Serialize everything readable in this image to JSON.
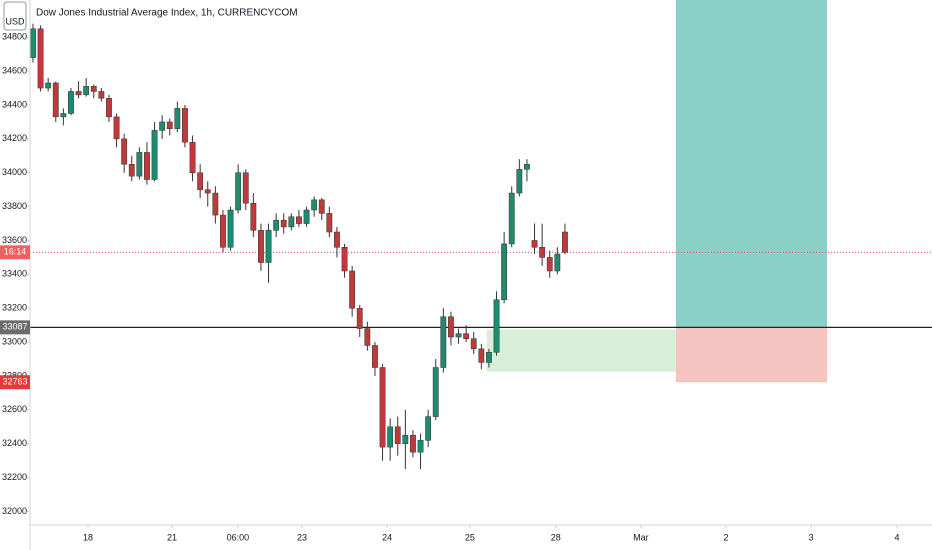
{
  "chart_data": {
    "type": "candlestick",
    "title": "Dow Jones Industrial Average Index, 1h, CURRENCYCOM",
    "currency": "USD",
    "up_color": "#1e8a6e",
    "down_color": "#c0393b",
    "x": [
      0,
      1,
      2,
      3,
      4,
      5,
      6,
      7,
      8,
      9,
      10,
      11,
      12,
      13,
      14,
      15,
      16,
      17,
      18,
      19,
      20,
      21,
      22,
      23,
      24,
      25,
      26,
      27,
      28,
      29,
      30,
      31,
      32,
      33,
      34,
      35,
      36,
      37,
      38,
      39,
      40,
      41,
      42,
      43,
      44,
      45,
      46,
      47,
      48,
      49,
      50,
      51,
      52,
      53,
      54,
      55,
      56,
      57,
      58,
      59,
      60,
      61,
      62,
      63,
      64,
      65,
      66,
      67,
      68,
      69,
      70
    ],
    "open": [
      34680,
      34850,
      34500,
      34530,
      34330,
      34350,
      34480,
      34460,
      34510,
      34480,
      34440,
      34330,
      34200,
      34050,
      33980,
      34120,
      33960,
      34250,
      34300,
      34260,
      34380,
      34180,
      34000,
      33900,
      33880,
      33750,
      33560,
      33780,
      34000,
      33820,
      33660,
      33470,
      33660,
      33720,
      33680,
      33740,
      33700,
      33780,
      33840,
      33760,
      33650,
      33560,
      33420,
      33200,
      33080,
      32980,
      32850,
      32380,
      32500,
      32400,
      32450,
      32350,
      32420,
      32560,
      32850,
      33150,
      33030,
      33050,
      33020,
      32960,
      32880,
      32940,
      33250,
      33580,
      33880,
      34020,
      33600,
      33560,
      33500,
      33420,
      33650
    ],
    "high": [
      34880,
      34870,
      34560,
      34540,
      34380,
      34500,
      34540,
      34560,
      34520,
      34500,
      34460,
      34350,
      34230,
      34100,
      34150,
      34180,
      34300,
      34340,
      34320,
      34420,
      34400,
      34220,
      34050,
      33950,
      33920,
      33780,
      33800,
      34050,
      34020,
      33880,
      33700,
      33700,
      33760,
      33760,
      33760,
      33780,
      33800,
      33860,
      33850,
      33800,
      33680,
      33580,
      33450,
      33220,
      33120,
      33000,
      32870,
      32550,
      32560,
      32600,
      32480,
      32460,
      32600,
      32900,
      33200,
      33180,
      33080,
      33100,
      33060,
      32990,
      32960,
      33300,
      33650,
      33920,
      34080,
      34080,
      33700,
      33700,
      33540,
      33560,
      33700
    ],
    "low": [
      34650,
      34480,
      34480,
      34300,
      34280,
      34340,
      34440,
      34450,
      34440,
      34420,
      34300,
      34150,
      34000,
      33950,
      33960,
      33930,
      33950,
      34200,
      34220,
      34240,
      34150,
      33950,
      33850,
      33800,
      33700,
      33530,
      33540,
      33760,
      33780,
      33620,
      33420,
      33350,
      33620,
      33640,
      33660,
      33680,
      33680,
      33740,
      33720,
      33620,
      33500,
      33380,
      33150,
      33030,
      32950,
      32800,
      32300,
      32300,
      32330,
      32250,
      32320,
      32250,
      32380,
      32540,
      32820,
      32980,
      32990,
      33000,
      32930,
      32840,
      32850,
      32920,
      33230,
      33560,
      33860,
      33950,
      33520,
      33450,
      33380,
      33400,
      33520
    ],
    "close": [
      34850,
      34500,
      34530,
      34330,
      34350,
      34480,
      34460,
      34510,
      34480,
      34440,
      34330,
      34200,
      34050,
      33980,
      34120,
      33960,
      34250,
      34300,
      34260,
      34380,
      34180,
      34000,
      33900,
      33880,
      33750,
      33560,
      33780,
      34000,
      33820,
      33660,
      33470,
      33660,
      33720,
      33680,
      33740,
      33700,
      33780,
      33840,
      33760,
      33650,
      33560,
      33420,
      33200,
      33080,
      32980,
      32850,
      32380,
      32500,
      32400,
      32450,
      32350,
      32420,
      32560,
      32850,
      33150,
      33030,
      33050,
      33020,
      32960,
      32880,
      32940,
      33250,
      33580,
      33880,
      34020,
      34050,
      33560,
      33500,
      33420,
      33520,
      33530
    ],
    "ylim": [
      31920,
      35020
    ],
    "yticks": [
      32000,
      32200,
      32400,
      32600,
      32800,
      33000,
      33200,
      33400,
      33600,
      33800,
      34000,
      34200,
      34400,
      34600,
      34800
    ],
    "xlim": [
      -0.39,
      118.3
    ],
    "xticks": [
      {
        "value": 7.24,
        "label": "18"
      },
      {
        "value": 18.3,
        "label": "21"
      },
      {
        "value": 26.97,
        "label": "06:00"
      },
      {
        "value": 35.4,
        "label": "23"
      },
      {
        "value": 46.6,
        "label": "24"
      },
      {
        "value": 57.5,
        "label": "25"
      },
      {
        "value": 68.8,
        "label": "28"
      },
      {
        "value": 80.0,
        "label": "Mar"
      },
      {
        "value": 91.2,
        "label": "2"
      },
      {
        "value": 102.4,
        "label": "3"
      },
      {
        "value": 113.7,
        "label": "4"
      }
    ],
    "zones": [
      {
        "x": [
          59.7,
          84.6
        ],
        "y": [
          32825,
          33075
        ],
        "color": "#d5eed6"
      },
      {
        "x": [
          84.6,
          104.5
        ],
        "y": [
          33087,
          35020
        ],
        "color": "#84cdc3"
      },
      {
        "x": [
          84.6,
          104.5
        ],
        "y": [
          32763,
          33087
        ],
        "color": "#f6c1bd"
      }
    ],
    "hlines": [
      {
        "value": 33087,
        "color": "#222222",
        "style": "solid"
      },
      {
        "value": 33530,
        "color": "#e05555",
        "style": "dotted"
      }
    ],
    "price_labels": [
      {
        "value": 33087,
        "label": "33087",
        "color": "#6b6b6b"
      },
      {
        "value": 33530,
        "label": "16:14",
        "color": "#f06060"
      },
      {
        "value": 32763,
        "label": "32763",
        "color": "#e53935"
      }
    ]
  }
}
